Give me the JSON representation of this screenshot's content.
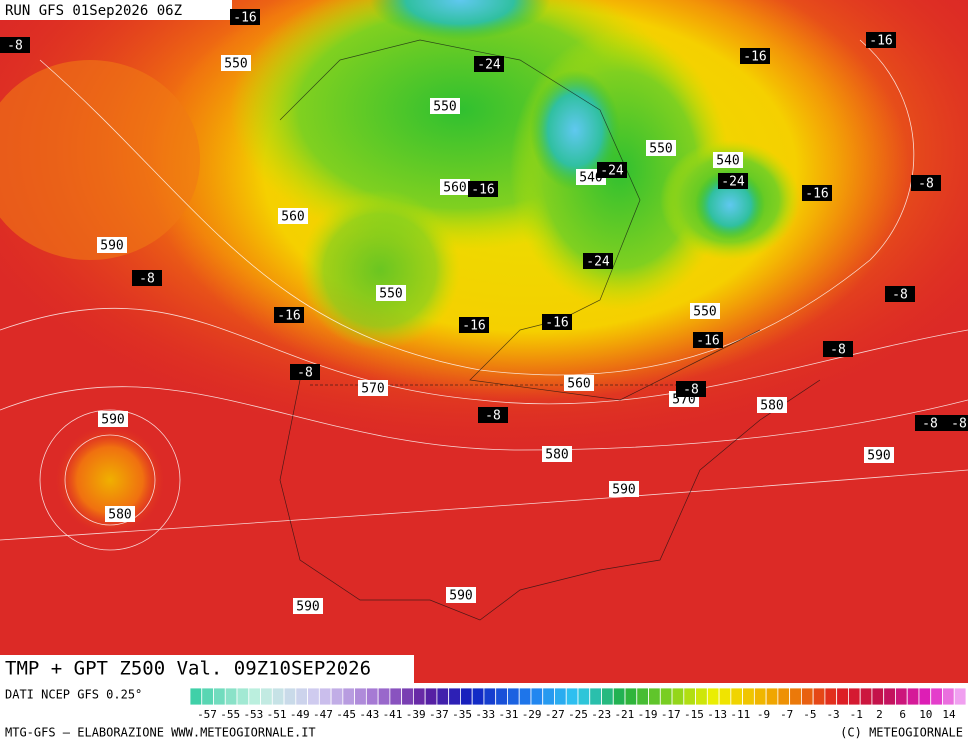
{
  "header": {
    "run": "RUN GFS 01Sep2026 06Z"
  },
  "map": {
    "title": "TMP + GPT Z500 Val. 09Z10SEP2026",
    "height_labels": [
      550,
      550,
      560,
      560,
      590,
      550,
      550,
      550,
      540,
      540,
      570,
      560,
      570,
      580,
      590,
      580,
      590,
      580,
      590,
      590,
      590
    ],
    "temp_labels": [
      -16,
      -8,
      -16,
      -16,
      -24,
      -24,
      -16,
      -24,
      -16,
      -8,
      -24,
      -8,
      -8,
      -16,
      -16,
      -16,
      -16,
      -8,
      -8,
      -8,
      -8,
      -8,
      -8
    ]
  },
  "legend": {
    "source": "DATI NCEP GFS 0.25°",
    "ticks": [
      -57,
      -55,
      -53,
      -51,
      -49,
      -47,
      -45,
      -43,
      -41,
      -39,
      -37,
      -35,
      -33,
      -31,
      -29,
      -27,
      -25,
      -23,
      -21,
      -19,
      -17,
      -15,
      -13,
      -11,
      -9,
      -7,
      -5,
      -3,
      -1,
      2,
      6,
      10,
      14
    ]
  },
  "footer": {
    "left": "MTG-GFS – ELABORAZIONE WWW.METEOGIORNALE.IT",
    "right": "(C) METEOGIORNALE"
  }
}
